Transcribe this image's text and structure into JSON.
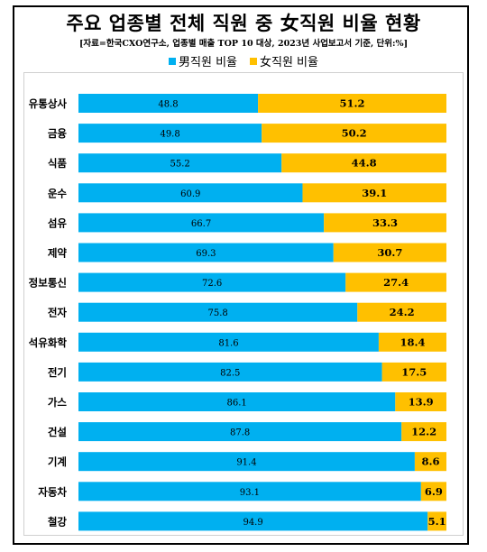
{
  "title": "주요 업종별 전체 직원 중 女직원 비율 현황",
  "source": "[자료=한국CXO연구소, 업종별 매출 TOP 10 대상, 2023년 사업보고서 기준, 단위:%]",
  "colors": {
    "male": "#00B0F0",
    "female": "#FFC000"
  },
  "chart_data": {
    "type": "bar",
    "orientation": "horizontal",
    "stacked": true,
    "title": "주요 업종별 전체 직원 중 女직원 비율 현황",
    "categories": [
      "유통상사",
      "금융",
      "식품",
      "운수",
      "섬유",
      "제약",
      "정보통신",
      "전자",
      "석유화학",
      "전기",
      "가스",
      "건설",
      "기계",
      "자동차",
      "철강"
    ],
    "series": [
      {
        "name": "男직원 비율",
        "values": [
          48.8,
          49.8,
          55.2,
          60.9,
          66.7,
          69.3,
          72.6,
          75.8,
          81.6,
          82.5,
          86.1,
          87.8,
          91.4,
          93.1,
          94.9
        ]
      },
      {
        "name": "女직원 비율",
        "values": [
          51.2,
          50.2,
          44.8,
          39.1,
          33.3,
          30.7,
          27.4,
          24.2,
          18.4,
          17.5,
          13.9,
          12.2,
          8.6,
          6.9,
          5.1
        ]
      }
    ],
    "xlim": [
      0,
      100
    ],
    "legend": "top-center",
    "grid": false
  }
}
